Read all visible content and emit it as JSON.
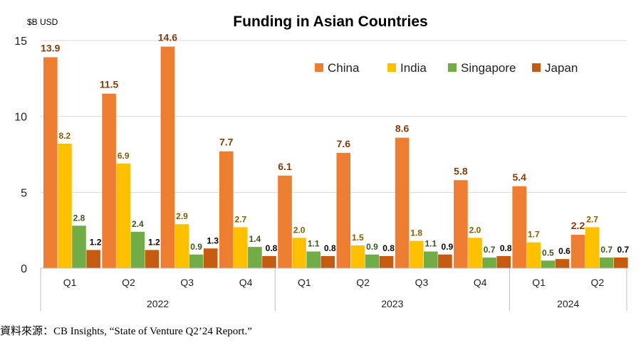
{
  "chart_data": {
    "type": "bar",
    "title": "Funding in Asian Countries",
    "unit_label": "$B USD",
    "ylim": [
      0,
      15
    ],
    "yticks": [
      0,
      5,
      10,
      15
    ],
    "grid": true,
    "legend_position": "top-right",
    "categories": [
      "Q1",
      "Q2",
      "Q3",
      "Q4",
      "Q1",
      "Q2",
      "Q3",
      "Q4",
      "Q1",
      "Q2"
    ],
    "years": [
      {
        "label": "2022",
        "span": 4
      },
      {
        "label": "2023",
        "span": 4
      },
      {
        "label": "2024",
        "span": 2
      }
    ],
    "series": [
      {
        "name": "China",
        "color": "#ED7D31",
        "label_color": "#843C0C",
        "values": [
          13.9,
          11.5,
          14.6,
          7.7,
          6.1,
          7.6,
          8.6,
          5.8,
          5.4,
          2.2
        ]
      },
      {
        "name": "India",
        "color": "#FFC000",
        "label_color": "#7F6000",
        "values": [
          8.2,
          6.9,
          2.9,
          2.7,
          2.0,
          1.5,
          1.8,
          2.0,
          1.7,
          2.7
        ]
      },
      {
        "name": "Singapore",
        "color": "#70AD47",
        "label_color": "#385723",
        "values": [
          2.8,
          2.4,
          0.9,
          1.4,
          1.1,
          0.9,
          1.1,
          0.7,
          0.5,
          0.7
        ]
      },
      {
        "name": "Japan",
        "color": "#C55A11",
        "label_color": "#000000",
        "values": [
          1.2,
          1.2,
          1.3,
          0.8,
          0.8,
          0.8,
          0.9,
          0.8,
          0.6,
          0.7
        ]
      }
    ]
  },
  "source_text": "資料來源：CB Insights, “State of Venture Q2’24 Report.”"
}
